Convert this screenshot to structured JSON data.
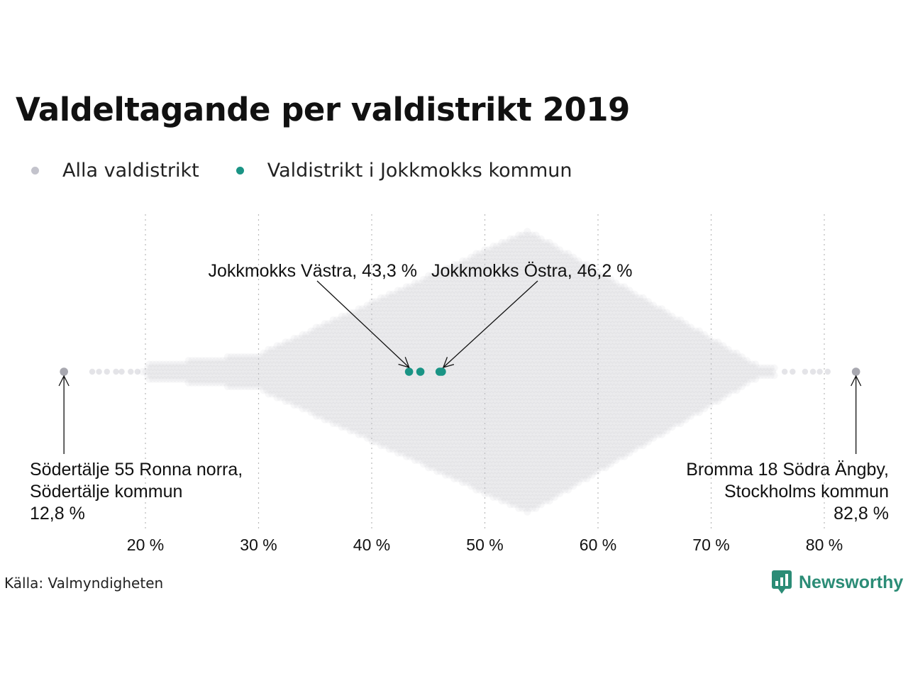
{
  "title": "Valdeltagande per valdistrikt 2019",
  "legend": [
    {
      "label": "Alla valdistrikt",
      "color": "#c3c3cc"
    },
    {
      "label": "Valdistrikt i Jokkmokks kommun",
      "color": "#1a9485"
    }
  ],
  "source": "Källa: Valmyndigheten",
  "logo": {
    "text": "Newsworthy",
    "color": "#2b8c76",
    "icon": "newsworthy-logo-icon"
  },
  "chart_data": {
    "type": "scatter",
    "variant": "beeswarm",
    "x_unit": "%",
    "xlim": [
      12,
      84
    ],
    "xticks": [
      20,
      30,
      40,
      50,
      60,
      70,
      80
    ],
    "xtick_labels": [
      "20 %",
      "30 %",
      "40 %",
      "50 %",
      "60 %",
      "70 %",
      "80 %"
    ],
    "grid": "vertical dotted",
    "series": [
      {
        "name": "Alla valdistrikt",
        "color": "#c3c3cc",
        "distribution": {
          "min": 12.8,
          "peak": 53.8,
          "max": 82.8,
          "isolated_low_values": [
            15.3,
            15.9,
            16.6,
            17.4,
            17.9,
            18.7,
            19.3
          ],
          "isolated_high_values": [
            76.5,
            77.2,
            78.3,
            79.0,
            79.6,
            80.3
          ]
        }
      },
      {
        "name": "Valdistrikt i Jokkmokks kommun",
        "color": "#1a9485",
        "values": [
          43.3,
          44.3,
          46.0,
          46.2
        ]
      }
    ],
    "annotations": [
      {
        "lines": [
          "Jokkmokks Västra, 43,3 %"
        ],
        "value": 43.3
      },
      {
        "lines": [
          "Jokkmokks Östra, 46,2 %"
        ],
        "value": 46.2
      },
      {
        "lines": [
          "Södertälje 55 Ronna norra,",
          "Södertälje kommun",
          "12,8 %"
        ],
        "value": 12.8
      },
      {
        "lines": [
          "Bromma 18 Södra Ängby,",
          "Stockholms kommun",
          "82,8 %"
        ],
        "value": 82.8
      }
    ]
  }
}
